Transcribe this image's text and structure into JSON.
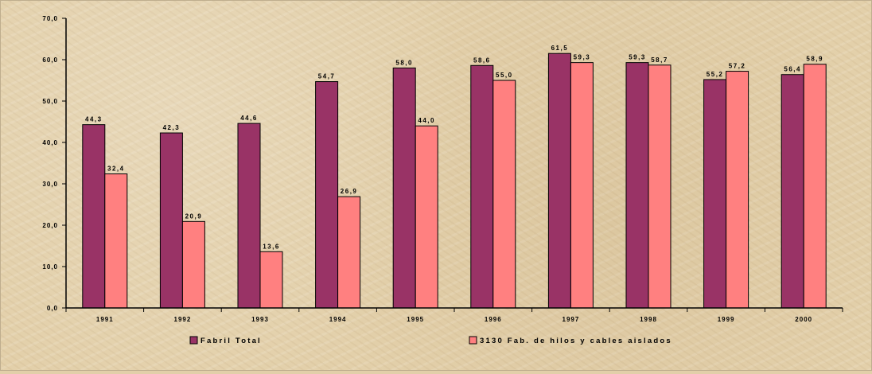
{
  "chart_data": {
    "type": "bar",
    "categories": [
      "1991",
      "1992",
      "1993",
      "1994",
      "1995",
      "1996",
      "1997",
      "1998",
      "1999",
      "2000"
    ],
    "series": [
      {
        "name": "Fabril Total",
        "color": "#993366",
        "values": [
          44.3,
          42.3,
          44.6,
          54.7,
          58.0,
          58.6,
          61.5,
          59.3,
          55.2,
          56.4
        ],
        "labels": [
          "44,3",
          "42,3",
          "44,6",
          "54,7",
          "58,0",
          "58,6",
          "61,5",
          "59,3",
          "55,2",
          "56,4"
        ]
      },
      {
        "name": "3130 Fab. de hilos y cables aislados",
        "color": "#ff8080",
        "values": [
          32.4,
          20.9,
          13.6,
          26.9,
          44.0,
          55.0,
          59.3,
          58.7,
          57.2,
          58.9
        ],
        "labels": [
          "32,4",
          "20,9",
          "13,6",
          "26,9",
          "44,0",
          "55,0",
          "59,3",
          "58,7",
          "57,2",
          "58,9"
        ]
      }
    ],
    "ylim": [
      0,
      70
    ],
    "yticks": [
      {
        "value": 0,
        "label": "0,0"
      },
      {
        "value": 10,
        "label": "10,0"
      },
      {
        "value": 20,
        "label": "20,0"
      },
      {
        "value": 30,
        "label": "30,0"
      },
      {
        "value": 40,
        "label": "40,0"
      },
      {
        "value": 50,
        "label": "50,0"
      },
      {
        "value": 60,
        "label": "60,0"
      },
      {
        "value": 70,
        "label": "70,0"
      }
    ],
    "grid": false,
    "legend_position": "bottom",
    "title": "",
    "xlabel": "",
    "ylabel": ""
  }
}
